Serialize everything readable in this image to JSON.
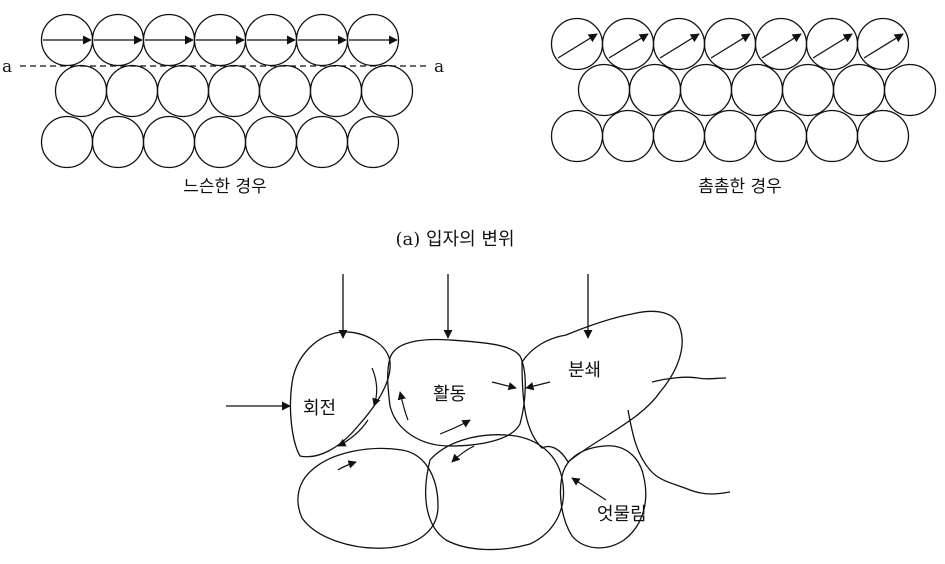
{
  "panel_a": {
    "section_caption": "(a) 입자의 변위",
    "loose": {
      "caption": "느슨한 경우",
      "line_label_left": "a",
      "line_label_right": "a"
    },
    "dense": {
      "caption": "촘촘한 경우"
    }
  },
  "panel_b": {
    "labels": {
      "rotation": "회전",
      "sliding": "활동",
      "crushing": "분쇄",
      "interlocking": "엇물림"
    }
  },
  "colors": {
    "stroke": "#111111",
    "background": "#ffffff"
  }
}
